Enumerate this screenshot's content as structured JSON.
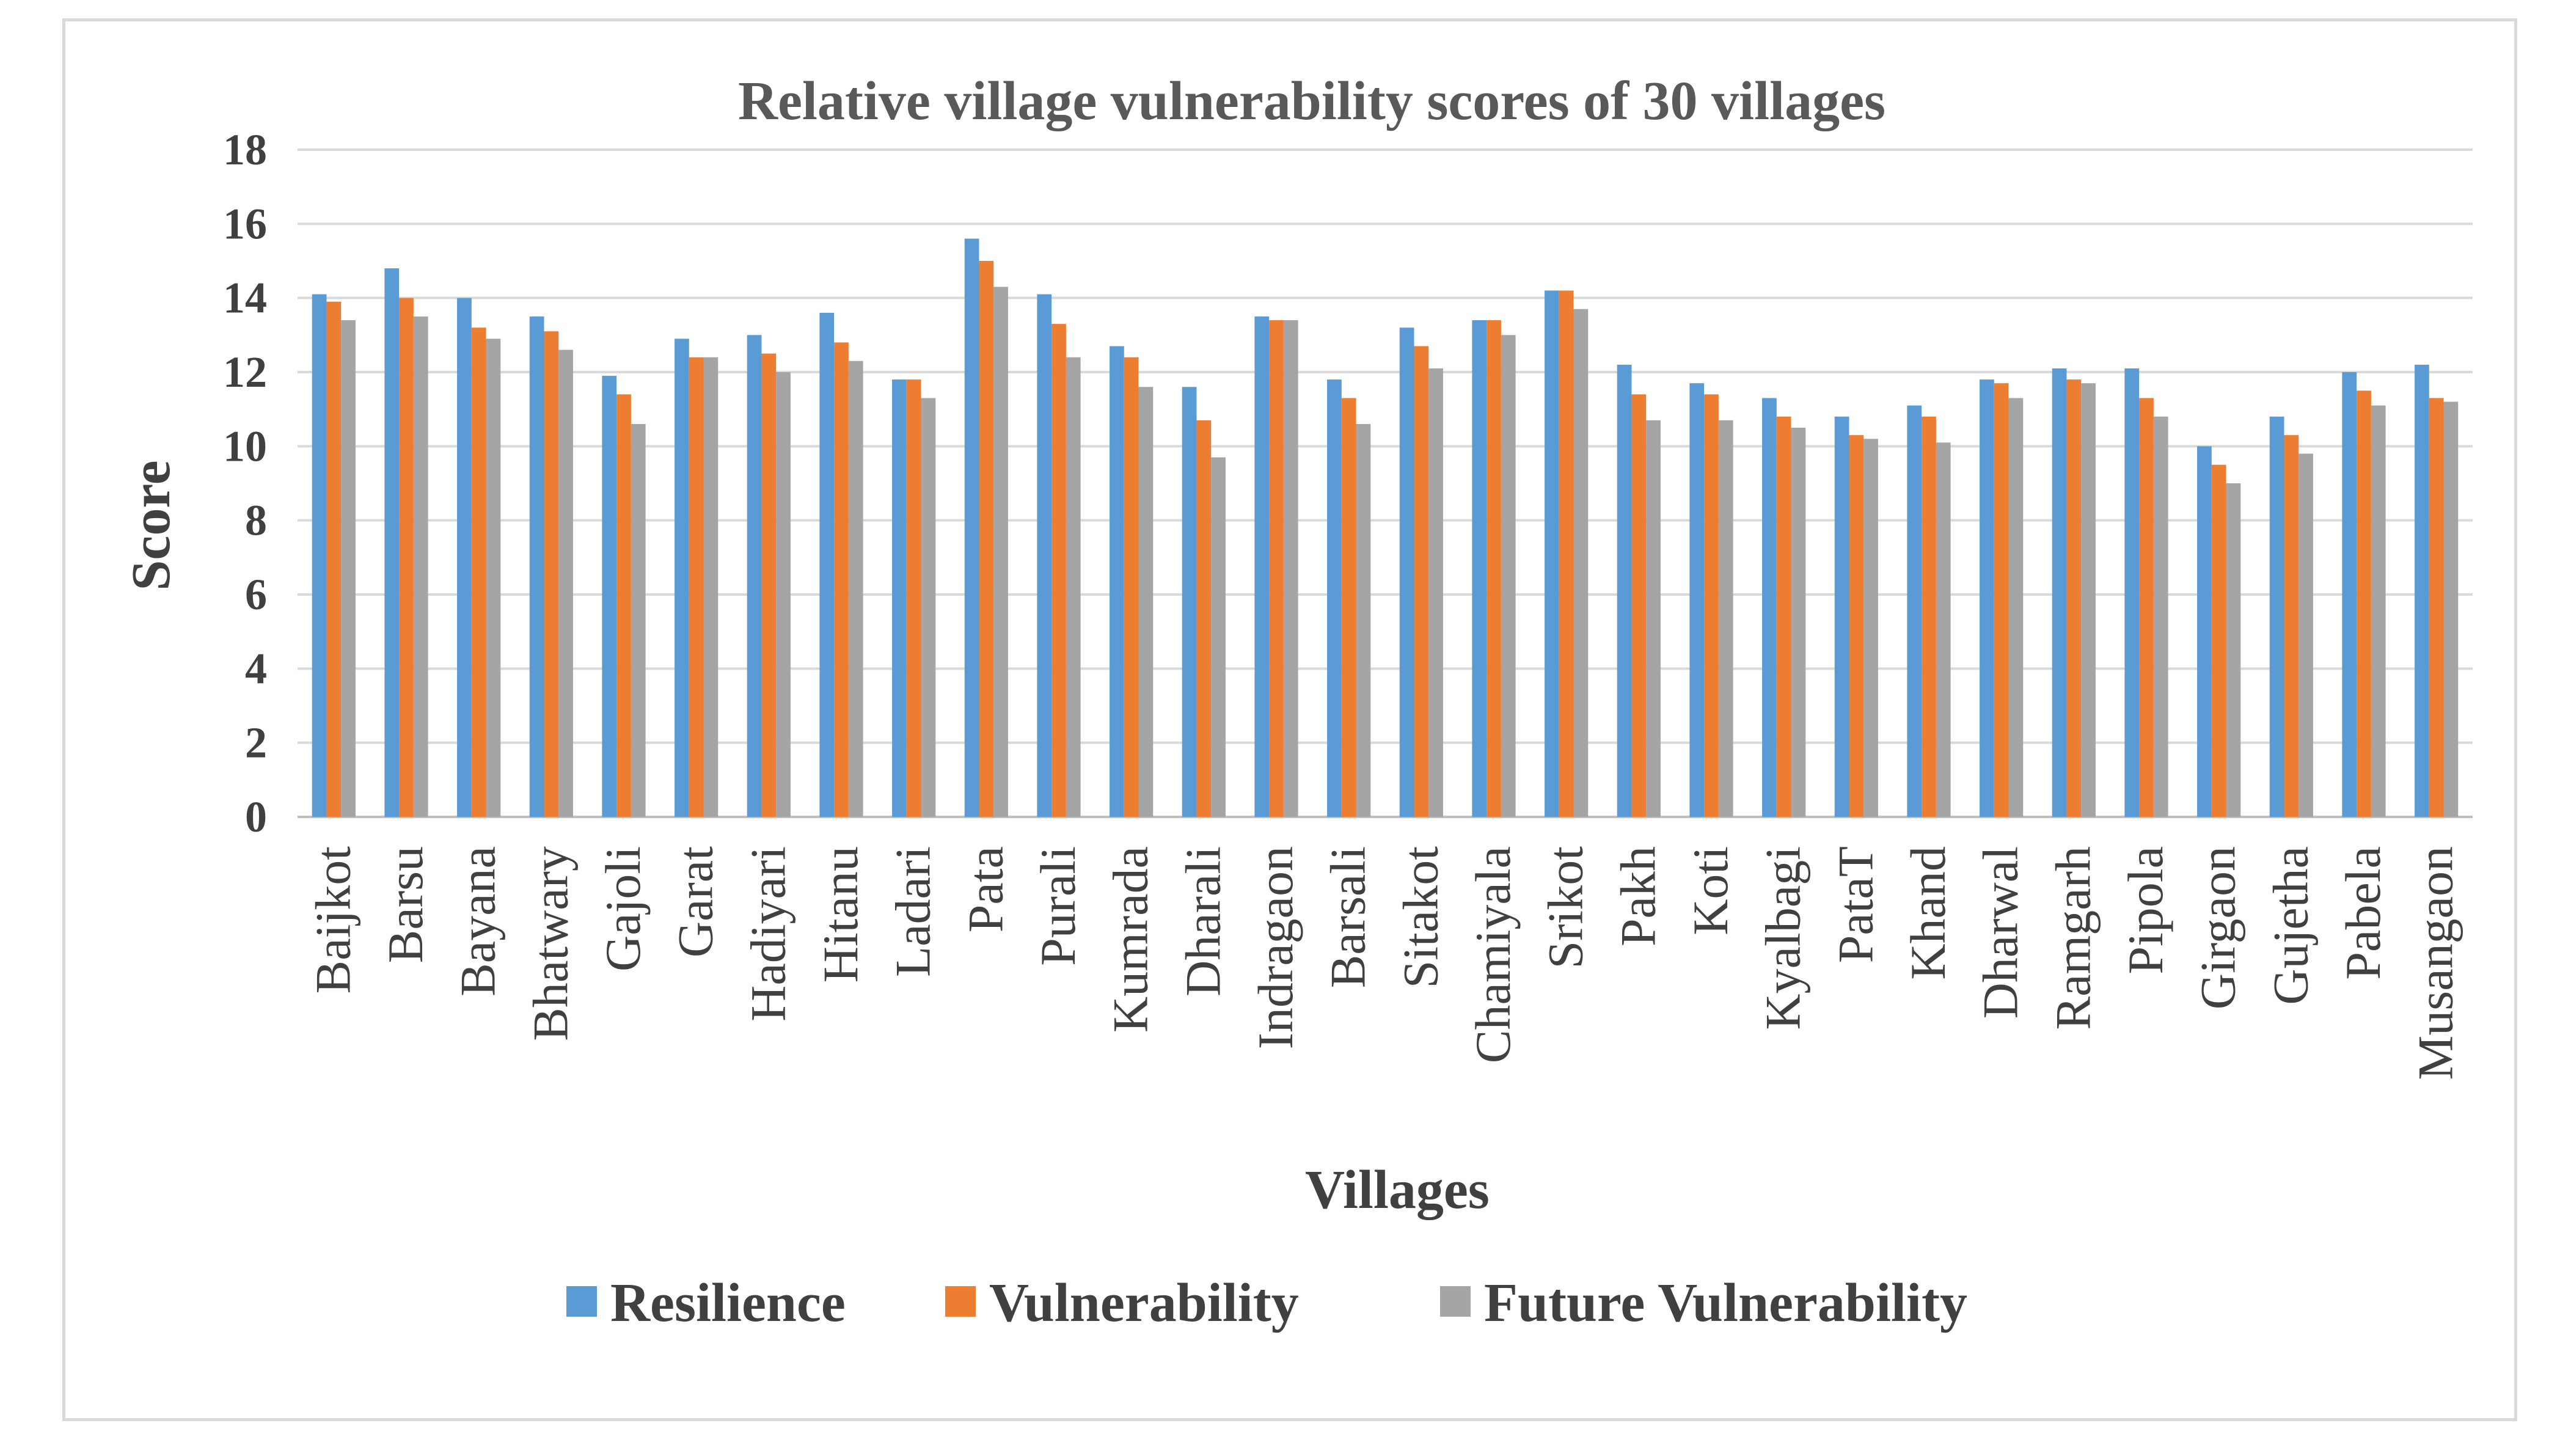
{
  "chart_data": {
    "type": "bar",
    "title": "Relative village vulnerability scores of 30 villages",
    "xlabel": "Villages",
    "ylabel": "Score",
    "ylim": [
      0,
      18
    ],
    "yticks": [
      0,
      2,
      4,
      6,
      8,
      10,
      12,
      14,
      16,
      18
    ],
    "grid": true,
    "legend_position": "bottom",
    "categories": [
      "Baijkot",
      "Barsu",
      "Bayana",
      "Bhatwary",
      "Gajoli",
      "Garat",
      "Hadiyari",
      "Hitanu",
      "Ladari",
      "Pata",
      "Purali",
      "Kumrada",
      "Dharali",
      "Indragaon",
      "Barsali",
      "Sitakot",
      "Chamiyala",
      "Srikot",
      "Pakh",
      "Koti",
      "Kyalbagi",
      "PataT",
      "Khand",
      "Dharwal",
      "Ramgarh",
      "Pipola",
      "Girgaon",
      "Gujetha",
      "Pabela",
      "Musangaon"
    ],
    "series": [
      {
        "name": "Resilience",
        "color": "#5b9bd5",
        "values": [
          14.1,
          14.8,
          14.0,
          13.5,
          11.9,
          12.9,
          13.0,
          13.6,
          11.8,
          15.6,
          14.1,
          12.7,
          11.6,
          13.5,
          11.8,
          13.2,
          13.4,
          14.2,
          12.2,
          11.7,
          11.3,
          10.8,
          11.1,
          11.8,
          12.1,
          12.1,
          10.0,
          10.8,
          12.0,
          12.2
        ]
      },
      {
        "name": "Vulnerability",
        "color": "#ed7d31",
        "values": [
          13.9,
          14.0,
          13.2,
          13.1,
          11.4,
          12.4,
          12.5,
          12.8,
          11.8,
          15.0,
          13.3,
          12.4,
          10.7,
          13.4,
          11.3,
          12.7,
          13.4,
          14.2,
          11.4,
          11.4,
          10.8,
          10.3,
          10.8,
          11.7,
          11.8,
          11.3,
          9.5,
          10.3,
          11.5,
          11.3
        ]
      },
      {
        "name": "Future Vulnerability",
        "color": "#a5a5a5",
        "values": [
          13.4,
          13.5,
          12.9,
          12.6,
          10.6,
          12.4,
          12.0,
          12.3,
          11.3,
          14.3,
          12.4,
          11.6,
          9.7,
          13.4,
          10.6,
          12.1,
          13.0,
          13.7,
          10.7,
          10.7,
          10.5,
          10.2,
          10.1,
          11.3,
          11.7,
          10.8,
          9.0,
          9.8,
          11.1,
          11.2
        ]
      }
    ]
  }
}
